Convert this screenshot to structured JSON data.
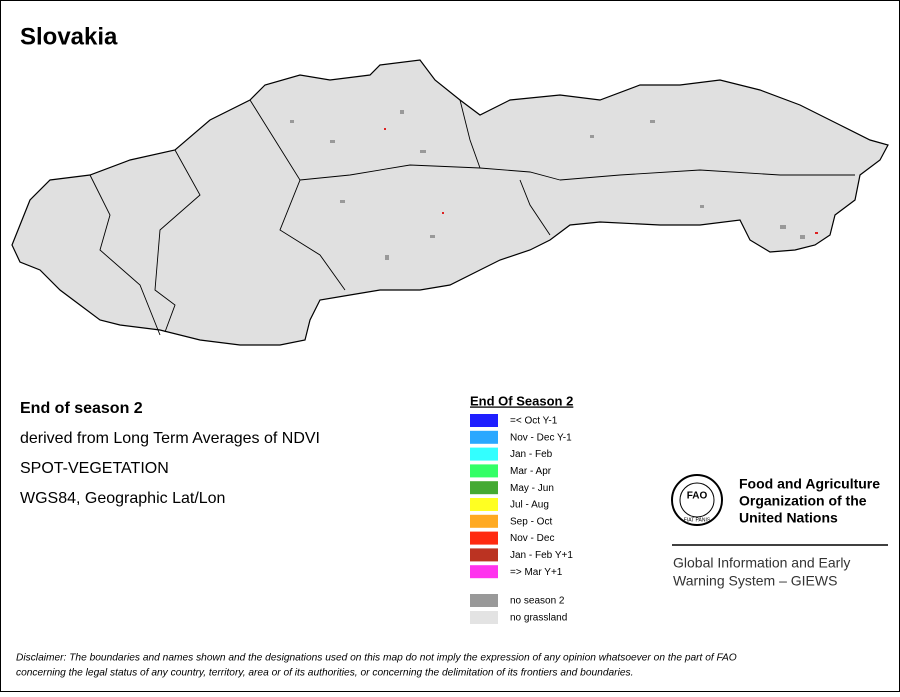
{
  "title": "Slovakia",
  "info": {
    "heading": "End of season 2",
    "lines": [
      "derived from Long Term Averages of NDVI",
      "SPOT-VEGETATION",
      "WGS84, Geographic Lat/Lon"
    ]
  },
  "legend": {
    "title": "End Of Season 2",
    "items": [
      {
        "label": "=< Oct Y-1",
        "color": "#1f1fff"
      },
      {
        "label": "Nov - Dec Y-1",
        "color": "#2aa8ff"
      },
      {
        "label": "Jan - Feb",
        "color": "#33ffff"
      },
      {
        "label": "Mar - Apr",
        "color": "#33ff66"
      },
      {
        "label": "May - Jun",
        "color": "#44aa33"
      },
      {
        "label": "Jul - Aug",
        "color": "#ffff22"
      },
      {
        "label": "Sep - Oct",
        "color": "#ffaa22"
      },
      {
        "label": "Nov - Dec",
        "color": "#ff2a10"
      },
      {
        "label": "Jan - Feb Y+1",
        "color": "#bb3322"
      },
      {
        "label": "=> Mar Y+1",
        "color": "#ff33ee"
      }
    ],
    "extra": [
      {
        "label": "no season 2",
        "color": "#999999"
      },
      {
        "label": "no grassland",
        "color": "#e3e3e3"
      }
    ]
  },
  "logo": {
    "seal_top": "FAO",
    "seal_bottom": "FIAT PANIS",
    "org": [
      "Food and Agriculture",
      "Organization of the",
      "United Nations"
    ],
    "system": [
      "Global Information and Early",
      "Warning System – GIEWS"
    ]
  },
  "disclaimer": [
    "Disclaimer: The boundaries and names shown and the designations used on this map do not imply the expression of any opinion whatsoever on the part of FAO",
    "concerning the legal status of any country, territory, area or of its authorities, or concerning the delimitation of its frontiers and boundaries."
  ]
}
